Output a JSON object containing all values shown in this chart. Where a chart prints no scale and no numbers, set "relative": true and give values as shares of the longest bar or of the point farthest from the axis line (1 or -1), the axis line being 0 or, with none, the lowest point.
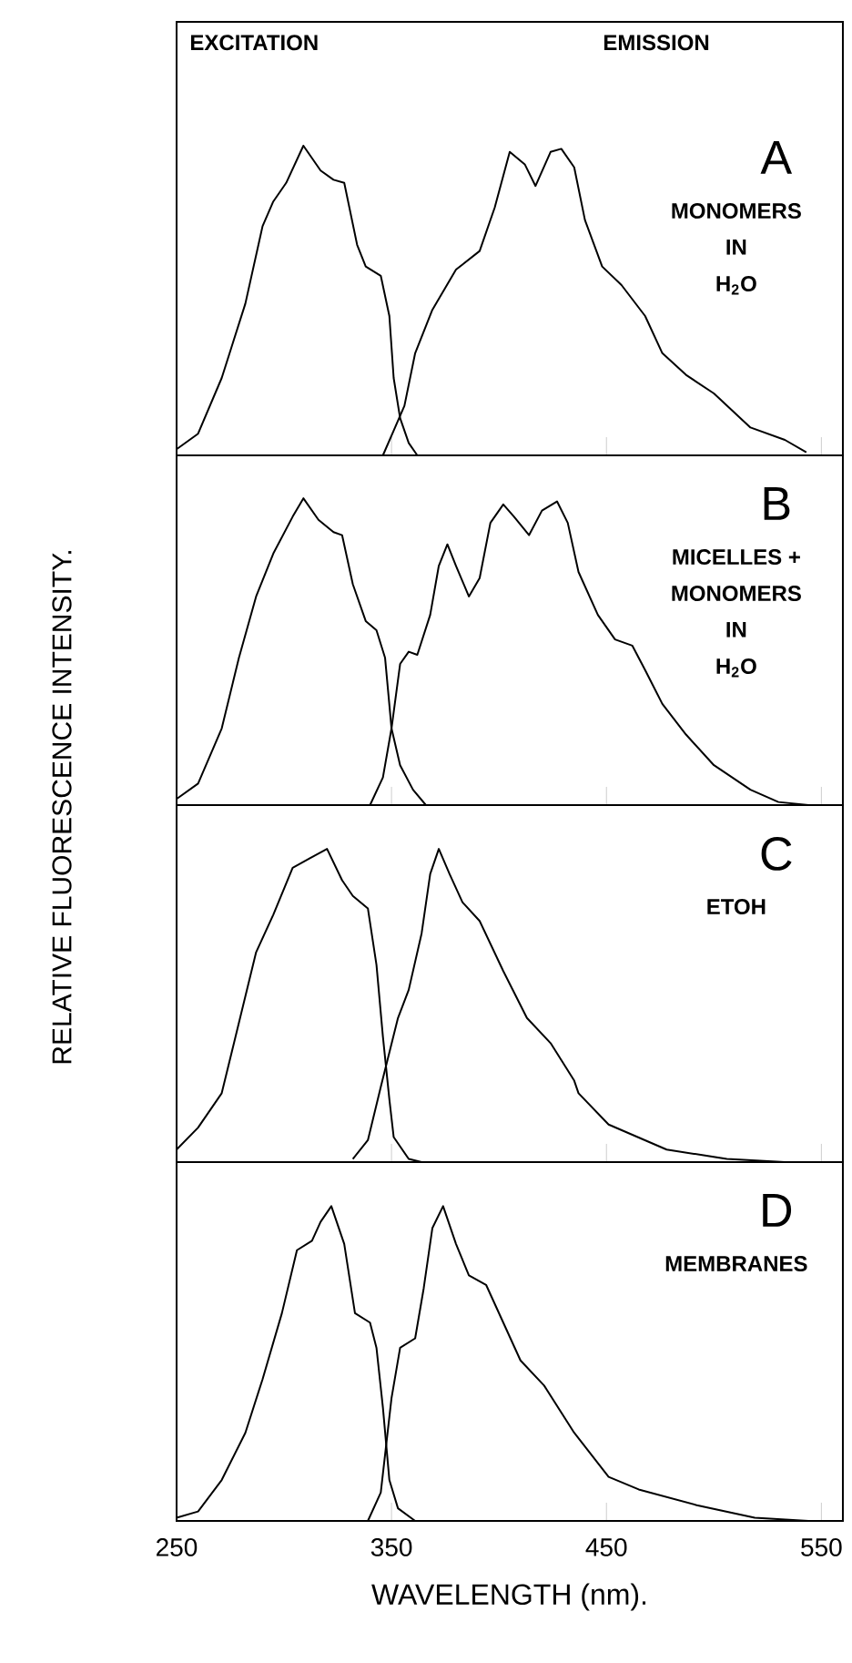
{
  "chart_data": [
    {
      "type": "line",
      "relative": true,
      "xlim": [
        250,
        560
      ],
      "xticks": [
        250,
        350,
        450,
        550
      ],
      "tick_labels": false,
      "ylabel": "RELATIVE FLUORESCENCE INTENSITY.",
      "annotations": [
        "EXCITATION",
        "EMISSION",
        "A",
        "MONOMERS",
        "IN",
        "H$_{2}$O"
      ],
      "series": [
        {
          "color": "#000000",
          "x": [
            250,
            260,
            271,
            282,
            290,
            295,
            301,
            309,
            317,
            323,
            328,
            334,
            338,
            345,
            349,
            351,
            354,
            358,
            362
          ],
          "values": [
            0.02,
            0.07,
            0.25,
            0.49,
            0.74,
            0.82,
            0.88,
            1.0,
            0.92,
            0.89,
            0.88,
            0.68,
            0.61,
            0.58,
            0.45,
            0.25,
            0.12,
            0.04,
            0.0
          ]
        },
        {
          "color": "#000000",
          "x": [
            346,
            351,
            356,
            361,
            369,
            380,
            391,
            398,
            405,
            412,
            417,
            424,
            429,
            435,
            440,
            448,
            457,
            468,
            476,
            487,
            500,
            517,
            533,
            543
          ],
          "values": [
            0.0,
            0.08,
            0.16,
            0.33,
            0.47,
            0.6,
            0.66,
            0.8,
            0.98,
            0.94,
            0.87,
            0.98,
            0.99,
            0.93,
            0.76,
            0.61,
            0.55,
            0.45,
            0.33,
            0.26,
            0.2,
            0.09,
            0.05,
            0.01
          ]
        }
      ]
    },
    {
      "type": "line",
      "relative": true,
      "xlim": [
        250,
        560
      ],
      "xticks": [
        250,
        350,
        450,
        550
      ],
      "tick_labels": false,
      "annotations": [
        "B",
        "MICELLES +",
        "MONOMERS",
        "IN",
        "H$_{2}$O"
      ],
      "series": [
        {
          "color": "#000000",
          "x": [
            250,
            260,
            271,
            279,
            287,
            295,
            304,
            309,
            316,
            323,
            327,
            332,
            338,
            343,
            347,
            350,
            354,
            360,
            366
          ],
          "values": [
            0.02,
            0.07,
            0.25,
            0.48,
            0.68,
            0.82,
            0.94,
            1.0,
            0.93,
            0.89,
            0.88,
            0.72,
            0.6,
            0.57,
            0.48,
            0.25,
            0.13,
            0.05,
            0.0
          ]
        },
        {
          "color": "#000000",
          "x": [
            340,
            346,
            350,
            354,
            358,
            362,
            368,
            372,
            376,
            380,
            386,
            391,
            396,
            402,
            407,
            414,
            420,
            427,
            432,
            437,
            446,
            454,
            462,
            468,
            476,
            487,
            500,
            517,
            530,
            544
          ],
          "values": [
            0.0,
            0.09,
            0.25,
            0.46,
            0.5,
            0.49,
            0.62,
            0.78,
            0.85,
            0.78,
            0.68,
            0.74,
            0.92,
            0.98,
            0.94,
            0.88,
            0.96,
            0.99,
            0.92,
            0.76,
            0.62,
            0.54,
            0.52,
            0.44,
            0.33,
            0.23,
            0.13,
            0.05,
            0.01,
            0.0
          ]
        }
      ]
    },
    {
      "type": "line",
      "relative": true,
      "xlim": [
        250,
        560
      ],
      "xticks": [
        250,
        350,
        450,
        550
      ],
      "tick_labels": false,
      "annotations": [
        "C",
        "ETOH"
      ],
      "series": [
        {
          "color": "#000000",
          "x": [
            250,
            260,
            271,
            287,
            295,
            304,
            312,
            320,
            327,
            332,
            339,
            343,
            346,
            349,
            351,
            358,
            364
          ],
          "values": [
            0.04,
            0.11,
            0.22,
            0.67,
            0.79,
            0.94,
            0.97,
            1.0,
            0.9,
            0.85,
            0.81,
            0.63,
            0.4,
            0.2,
            0.08,
            0.01,
            0.0
          ]
        },
        {
          "color": "#000000",
          "x": [
            332,
            339,
            345,
            353,
            358,
            364,
            368,
            372,
            377,
            383,
            391,
            402,
            413,
            424,
            435,
            437,
            451,
            478,
            506,
            533
          ],
          "values": [
            0.01,
            0.07,
            0.24,
            0.46,
            0.55,
            0.73,
            0.92,
            1.0,
            0.92,
            0.83,
            0.77,
            0.61,
            0.46,
            0.38,
            0.26,
            0.22,
            0.12,
            0.04,
            0.01,
            0.0
          ]
        }
      ]
    },
    {
      "type": "line",
      "relative": true,
      "xlim": [
        250,
        560
      ],
      "xticks": [
        250,
        350,
        450,
        550
      ],
      "tick_labels": "x",
      "xlabel": "WAVELENGTH  (nm).",
      "annotations": [
        "D",
        "MEMBRANES"
      ],
      "series": [
        {
          "color": "#000000",
          "x": [
            250,
            260,
            271,
            282,
            290,
            299,
            306,
            313,
            317,
            322,
            328,
            333,
            340,
            343,
            346,
            349,
            353,
            361
          ],
          "values": [
            0.01,
            0.03,
            0.13,
            0.28,
            0.45,
            0.66,
            0.86,
            0.89,
            0.95,
            1.0,
            0.88,
            0.66,
            0.63,
            0.55,
            0.36,
            0.13,
            0.04,
            0.0
          ]
        },
        {
          "color": "#000000",
          "x": [
            339,
            345,
            350,
            354,
            361,
            365,
            369,
            374,
            380,
            386,
            394,
            402,
            410,
            421,
            435,
            451,
            465,
            492,
            519,
            544
          ],
          "values": [
            0.0,
            0.09,
            0.39,
            0.55,
            0.58,
            0.74,
            0.93,
            1.0,
            0.88,
            0.78,
            0.75,
            0.63,
            0.51,
            0.43,
            0.28,
            0.14,
            0.1,
            0.05,
            0.01,
            0.0
          ]
        }
      ]
    }
  ]
}
